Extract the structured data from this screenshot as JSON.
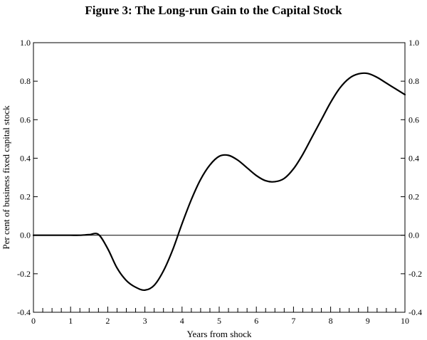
{
  "chart_data": {
    "type": "line",
    "title": "Figure 3: The Long-run Gain to the Capital Stock",
    "xlabel": "Years from shock",
    "ylabel": "Per cent of business fixed capital stock",
    "xlim": [
      0,
      10
    ],
    "ylim": [
      -0.4,
      1.0
    ],
    "x_ticks": [
      0,
      1,
      2,
      3,
      4,
      5,
      6,
      7,
      8,
      9,
      10
    ],
    "x_tick_labels": [
      "0",
      "1",
      "2",
      "3",
      "4",
      "5",
      "6",
      "7",
      "8",
      "9",
      "10"
    ],
    "x_minor_step": 0.25,
    "y_ticks": [
      -0.4,
      -0.2,
      0.0,
      0.2,
      0.4,
      0.6,
      0.8,
      1.0
    ],
    "y_tick_labels": [
      "-0.4",
      "-0.2",
      "0.0",
      "0.2",
      "0.4",
      "0.6",
      "0.8",
      "1.0"
    ],
    "right_axis_duplicate": true,
    "zero_line": true,
    "grid": false,
    "series": [
      {
        "x": [
          0,
          0.25,
          0.5,
          0.75,
          1.0,
          1.25,
          1.5,
          1.75,
          2.0,
          2.25,
          2.5,
          2.75,
          3.0,
          3.25,
          3.5,
          3.75,
          4.0,
          4.25,
          4.5,
          4.75,
          5.0,
          5.25,
          5.5,
          5.75,
          6.0,
          6.25,
          6.5,
          6.75,
          7.0,
          7.25,
          7.5,
          7.75,
          8.0,
          8.25,
          8.5,
          8.75,
          9.0,
          9.25,
          9.5,
          9.75,
          10.0
        ],
        "y": [
          0,
          0,
          0,
          0,
          0,
          0,
          0.003,
          0.004,
          -0.07,
          -0.17,
          -0.235,
          -0.27,
          -0.285,
          -0.26,
          -0.185,
          -0.075,
          0.06,
          0.185,
          0.29,
          0.365,
          0.41,
          0.415,
          0.39,
          0.35,
          0.31,
          0.283,
          0.278,
          0.295,
          0.345,
          0.42,
          0.51,
          0.6,
          0.69,
          0.765,
          0.815,
          0.838,
          0.84,
          0.82,
          0.79,
          0.76,
          0.73
        ],
        "color": "#000000"
      }
    ]
  }
}
